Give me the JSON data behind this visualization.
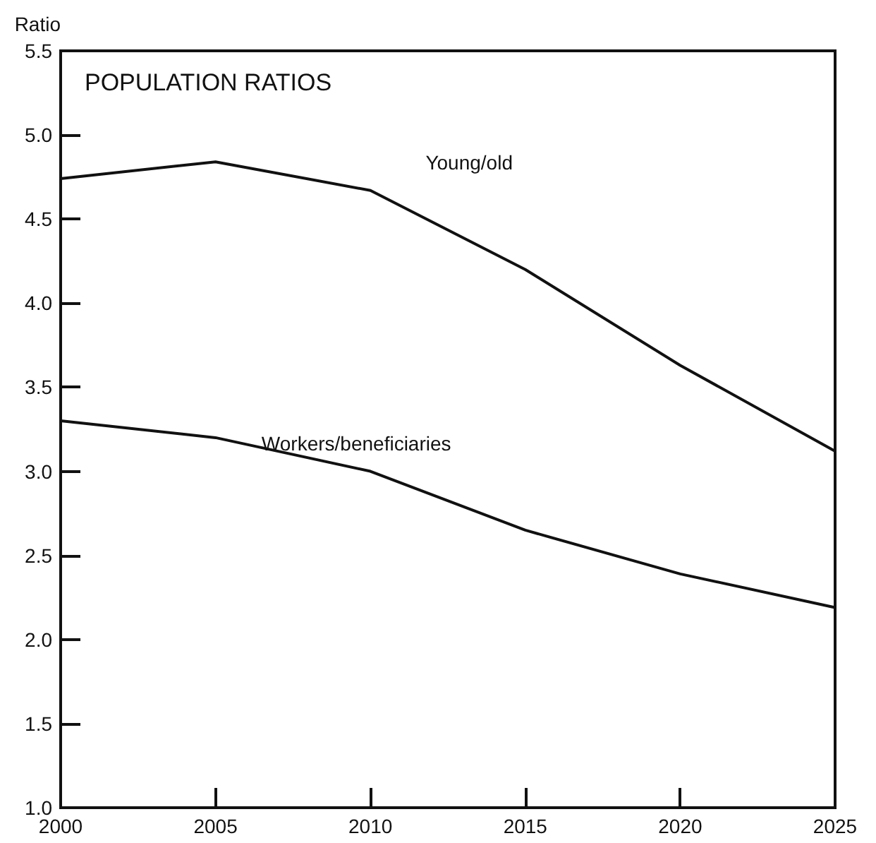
{
  "chart_data": {
    "type": "line",
    "title": "POPULATION RATIOS",
    "ylabel": "Ratio",
    "x": [
      2000,
      2005,
      2010,
      2015,
      2020,
      2025
    ],
    "series": [
      {
        "name": "Young/old",
        "color": "#111111",
        "values": [
          4.74,
          4.84,
          4.67,
          4.2,
          3.63,
          3.12
        ]
      },
      {
        "name": "Workers/beneficiaries",
        "color": "#111111",
        "values": [
          3.3,
          3.2,
          3.0,
          2.65,
          2.39,
          2.19
        ]
      }
    ],
    "xlim": [
      2000,
      2025
    ],
    "xticks": [
      2000,
      2005,
      2010,
      2015,
      2020,
      2025
    ],
    "ylim": [
      1.0,
      5.5
    ],
    "yticks": [
      {
        "value": 1.0,
        "label": "1.0"
      },
      {
        "value": 1.5,
        "label": "1.5"
      },
      {
        "value": 2.0,
        "label": "2.0"
      },
      {
        "value": 2.5,
        "label": "2.5"
      },
      {
        "value": 3.0,
        "label": "3.0"
      },
      {
        "value": 3.5,
        "label": "3.5"
      },
      {
        "value": 4.0,
        "label": "4.0"
      },
      {
        "value": 4.5,
        "label": "4.5"
      },
      {
        "value": 5.0,
        "label": "5.0"
      },
      {
        "value": 5.5,
        "label": "5.5"
      }
    ],
    "grid": false,
    "legend": false,
    "marker": "none",
    "line_style": "solid"
  }
}
